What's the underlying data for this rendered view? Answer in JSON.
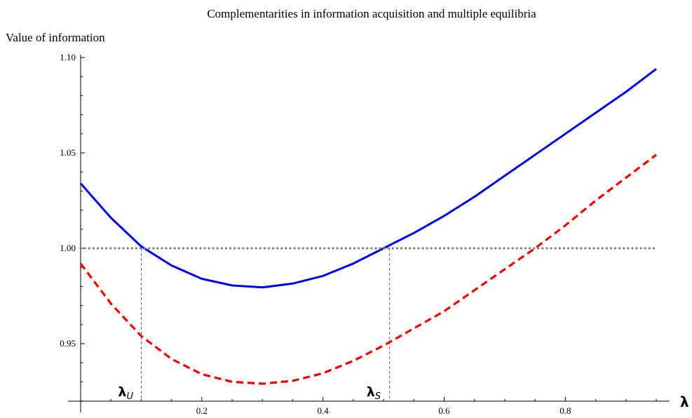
{
  "chart_data": {
    "type": "line",
    "title": "Complementarities  in information  acquisition  and  multiple equilibria",
    "ylabel": "Value  of information",
    "xlabel": "λ",
    "xlim": [
      0,
      0.95
    ],
    "ylim": [
      0.92,
      1.1
    ],
    "x_ticks": [
      {
        "value": 0.2,
        "label": "0.2"
      },
      {
        "value": 0.4,
        "label": "0.4"
      },
      {
        "value": 0.6,
        "label": "0.6"
      },
      {
        "value": 0.8,
        "label": "0.8"
      }
    ],
    "y_ticks": [
      {
        "value": 0.95,
        "label": "0.95"
      },
      {
        "value": 1.0,
        "label": "1.00"
      },
      {
        "value": 1.05,
        "label": "1.05"
      },
      {
        "value": 1.1,
        "label": "1.10"
      }
    ],
    "grid": false,
    "series": [
      {
        "style": "solid",
        "color": "#0000ee",
        "x": [
          0.0,
          0.05,
          0.1,
          0.15,
          0.2,
          0.25,
          0.3,
          0.35,
          0.4,
          0.45,
          0.5,
          0.55,
          0.6,
          0.65,
          0.7,
          0.75,
          0.8,
          0.85,
          0.9,
          0.95
        ],
        "y": [
          1.034,
          1.016,
          1.001,
          0.991,
          0.984,
          0.9805,
          0.9795,
          0.9815,
          0.9855,
          0.992,
          1.0,
          1.008,
          1.017,
          1.027,
          1.038,
          1.049,
          1.06,
          1.071,
          1.082,
          1.094
        ]
      },
      {
        "style": "dashed",
        "color": "#ee0000",
        "x": [
          0.0,
          0.05,
          0.1,
          0.15,
          0.2,
          0.25,
          0.3,
          0.35,
          0.4,
          0.45,
          0.5,
          0.55,
          0.6,
          0.65,
          0.7,
          0.75,
          0.8,
          0.85,
          0.9,
          0.95
        ],
        "y": [
          0.992,
          0.971,
          0.954,
          0.942,
          0.934,
          0.93,
          0.929,
          0.9305,
          0.9345,
          0.941,
          0.949,
          0.958,
          0.967,
          0.978,
          0.989,
          1.0,
          1.012,
          1.025,
          1.037,
          1.049
        ]
      },
      {
        "style": "dotted",
        "color": "#808080",
        "x": [
          0.0,
          0.95
        ],
        "y": [
          1.0,
          1.0
        ]
      }
    ],
    "markers": [
      {
        "x": 0.1,
        "y": 1.0,
        "label": "λ",
        "sub": "U"
      },
      {
        "x": 0.51,
        "y": 1.0,
        "label": "λ",
        "sub": "S"
      }
    ]
  }
}
